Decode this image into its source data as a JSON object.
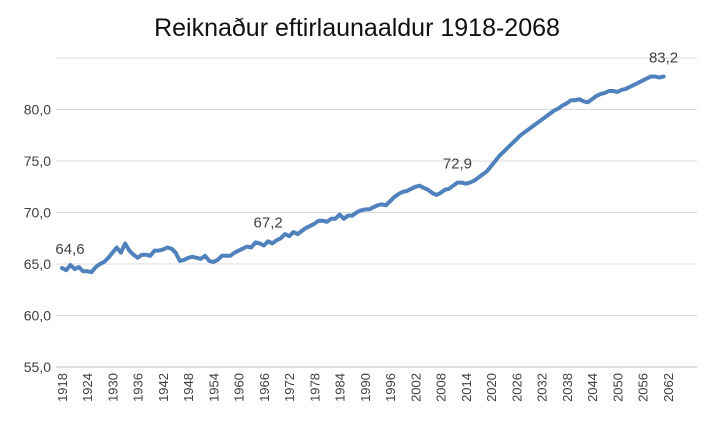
{
  "chart_data": {
    "type": "line",
    "title": "Reiknaður eftirlaunaaldur 1918-2068",
    "xlabel": "",
    "ylabel": "",
    "ylim": [
      55,
      85
    ],
    "yticks": [
      "55,0",
      "60,0",
      "65,0",
      "70,0",
      "75,0",
      "80,0"
    ],
    "xlim": [
      1918,
      2068
    ],
    "xticks": [
      "1918",
      "1924",
      "1930",
      "1936",
      "1942",
      "1948",
      "1954",
      "1960",
      "1966",
      "1972",
      "1978",
      "1984",
      "1990",
      "1996",
      "2002",
      "2008",
      "2014",
      "2020",
      "2026",
      "2032",
      "2038",
      "2044",
      "2050",
      "2056",
      "2062"
    ],
    "grid": true,
    "series": [
      {
        "color": "#4f81bd",
        "points": [
          [
            1918,
            64.6
          ],
          [
            1919,
            64.4
          ],
          [
            1920,
            64.9
          ],
          [
            1921,
            64.5
          ],
          [
            1922,
            64.7
          ],
          [
            1923,
            64.3
          ],
          [
            1924,
            64.3
          ],
          [
            1925,
            64.2
          ],
          [
            1926,
            64.7
          ],
          [
            1927,
            65.0
          ],
          [
            1928,
            65.2
          ],
          [
            1929,
            65.6
          ],
          [
            1930,
            66.1
          ],
          [
            1931,
            66.6
          ],
          [
            1932,
            66.1
          ],
          [
            1933,
            67.0
          ],
          [
            1934,
            66.3
          ],
          [
            1935,
            65.9
          ],
          [
            1936,
            65.6
          ],
          [
            1937,
            65.9
          ],
          [
            1938,
            65.9
          ],
          [
            1939,
            65.8
          ],
          [
            1940,
            66.3
          ],
          [
            1941,
            66.3
          ],
          [
            1942,
            66.4
          ],
          [
            1943,
            66.6
          ],
          [
            1944,
            66.5
          ],
          [
            1945,
            66.1
          ],
          [
            1946,
            65.3
          ],
          [
            1947,
            65.4
          ],
          [
            1948,
            65.6
          ],
          [
            1949,
            65.7
          ],
          [
            1950,
            65.6
          ],
          [
            1951,
            65.5
          ],
          [
            1952,
            65.8
          ],
          [
            1953,
            65.3
          ],
          [
            1954,
            65.2
          ],
          [
            1955,
            65.4
          ],
          [
            1956,
            65.8
          ],
          [
            1957,
            65.8
          ],
          [
            1958,
            65.8
          ],
          [
            1959,
            66.1
          ],
          [
            1960,
            66.3
          ],
          [
            1961,
            66.5
          ],
          [
            1962,
            66.7
          ],
          [
            1963,
            66.6
          ],
          [
            1964,
            67.1
          ],
          [
            1965,
            67.0
          ],
          [
            1966,
            66.8
          ],
          [
            1967,
            67.2
          ],
          [
            1968,
            67.0
          ],
          [
            1969,
            67.3
          ],
          [
            1970,
            67.5
          ],
          [
            1971,
            67.9
          ],
          [
            1972,
            67.7
          ],
          [
            1973,
            68.1
          ],
          [
            1974,
            67.9
          ],
          [
            1975,
            68.2
          ],
          [
            1976,
            68.5
          ],
          [
            1977,
            68.7
          ],
          [
            1978,
            68.9
          ],
          [
            1979,
            69.2
          ],
          [
            1980,
            69.2
          ],
          [
            1981,
            69.1
          ],
          [
            1982,
            69.4
          ],
          [
            1983,
            69.4
          ],
          [
            1984,
            69.8
          ],
          [
            1985,
            69.4
          ],
          [
            1986,
            69.7
          ],
          [
            1987,
            69.7
          ],
          [
            1988,
            70.0
          ],
          [
            1989,
            70.2
          ],
          [
            1990,
            70.3
          ],
          [
            1991,
            70.3
          ],
          [
            1992,
            70.5
          ],
          [
            1993,
            70.7
          ],
          [
            1994,
            70.8
          ],
          [
            1995,
            70.7
          ],
          [
            1996,
            71.1
          ],
          [
            1997,
            71.5
          ],
          [
            1998,
            71.8
          ],
          [
            1999,
            72.0
          ],
          [
            2000,
            72.1
          ],
          [
            2001,
            72.3
          ],
          [
            2002,
            72.5
          ],
          [
            2003,
            72.6
          ],
          [
            2004,
            72.4
          ],
          [
            2005,
            72.2
          ],
          [
            2006,
            71.9
          ],
          [
            2007,
            71.7
          ],
          [
            2008,
            71.9
          ],
          [
            2009,
            72.2
          ],
          [
            2010,
            72.3
          ],
          [
            2011,
            72.6
          ],
          [
            2012,
            72.9
          ],
          [
            2013,
            72.9
          ],
          [
            2014,
            72.8
          ],
          [
            2015,
            72.9
          ],
          [
            2016,
            73.1
          ],
          [
            2017,
            73.4
          ],
          [
            2018,
            73.7
          ],
          [
            2019,
            74.0
          ],
          [
            2020,
            74.5
          ],
          [
            2021,
            75.0
          ],
          [
            2022,
            75.5
          ],
          [
            2023,
            75.9
          ],
          [
            2024,
            76.3
          ],
          [
            2025,
            76.7
          ],
          [
            2026,
            77.1
          ],
          [
            2027,
            77.5
          ],
          [
            2028,
            77.8
          ],
          [
            2029,
            78.1
          ],
          [
            2030,
            78.4
          ],
          [
            2031,
            78.7
          ],
          [
            2032,
            79.0
          ],
          [
            2033,
            79.3
          ],
          [
            2034,
            79.6
          ],
          [
            2035,
            79.9
          ],
          [
            2036,
            80.1
          ],
          [
            2037,
            80.4
          ],
          [
            2038,
            80.6
          ],
          [
            2039,
            80.9
          ],
          [
            2040,
            80.9
          ],
          [
            2041,
            81.0
          ],
          [
            2042,
            80.8
          ],
          [
            2043,
            80.7
          ],
          [
            2044,
            81.0
          ],
          [
            2045,
            81.3
          ],
          [
            2046,
            81.5
          ],
          [
            2047,
            81.6
          ],
          [
            2048,
            81.8
          ],
          [
            2049,
            81.8
          ],
          [
            2050,
            81.7
          ],
          [
            2051,
            81.9
          ],
          [
            2052,
            82.0
          ],
          [
            2053,
            82.2
          ],
          [
            2054,
            82.4
          ],
          [
            2055,
            82.6
          ],
          [
            2056,
            82.8
          ],
          [
            2057,
            83.0
          ],
          [
            2058,
            83.2
          ],
          [
            2059,
            83.2
          ],
          [
            2060,
            83.1
          ],
          [
            2061,
            83.2
          ]
        ]
      }
    ],
    "annotations": [
      {
        "x": 1918,
        "y": 64.6,
        "label": "64,6"
      },
      {
        "x": 1967,
        "y": 67.2,
        "label": "67,2"
      },
      {
        "x": 2012,
        "y": 72.9,
        "label": "72,9"
      },
      {
        "x": 2061,
        "y": 83.2,
        "label": "83,2"
      }
    ]
  }
}
